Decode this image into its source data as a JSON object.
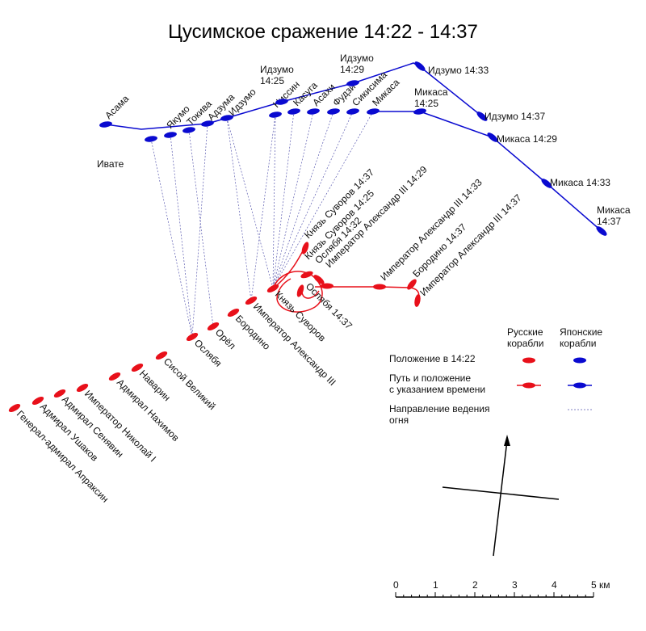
{
  "title": "Цусимское сражение 14:22 - 14:37",
  "colors": {
    "russian": "#e8101a",
    "japanese": "#0a0ad0",
    "fire": "#5a5ab0"
  },
  "japanese_ships": [
    "Асама",
    "Ивате",
    "Якумо",
    "Токива",
    "Адзума",
    "Идзумо",
    "Ниссин",
    "Касуга",
    "Асахи",
    "Фудзи",
    "Сикисима",
    "Микаса"
  ],
  "japanese_track_labels": [
    "Идзумо 14:25",
    "Идзумо 14:29",
    "Идзумо 14:33",
    "Идзумо 14:37",
    "Микаса 14:25",
    "Микаса 14:29",
    "Микаса 14:33",
    "Микаса 14:37"
  ],
  "russian_ships": [
    "Князь Суворов",
    "Император Александр III",
    "Бородино",
    "Орёл",
    "Ослябя",
    "Сисой Великий",
    "Наварин",
    "Адмирал Нахимов",
    "Император Николай I",
    "Адмирал Сенявин",
    "Адмирал Ушаков",
    "Генерал-адмирал Апраксин"
  ],
  "russian_track_labels": [
    "Князь Суворов 14:37",
    "Князь Суворов 14:25",
    "Ослябя 14:32",
    "Император Александр III 14:29",
    "Император Александр III 14:33",
    "Бородино 14:37",
    "Император Александр III 14:37",
    "Ослябя 14:37"
  ],
  "legend": {
    "col_russian": "Русские корабли",
    "col_japanese": "Японские корабли",
    "position": "Положение в 14:22",
    "track": "Путь и положение с указанием времени",
    "fire": "Направление ведения огня"
  },
  "scale": {
    "ticks": [
      "0",
      "1",
      "2",
      "3",
      "4",
      "5 км"
    ]
  }
}
